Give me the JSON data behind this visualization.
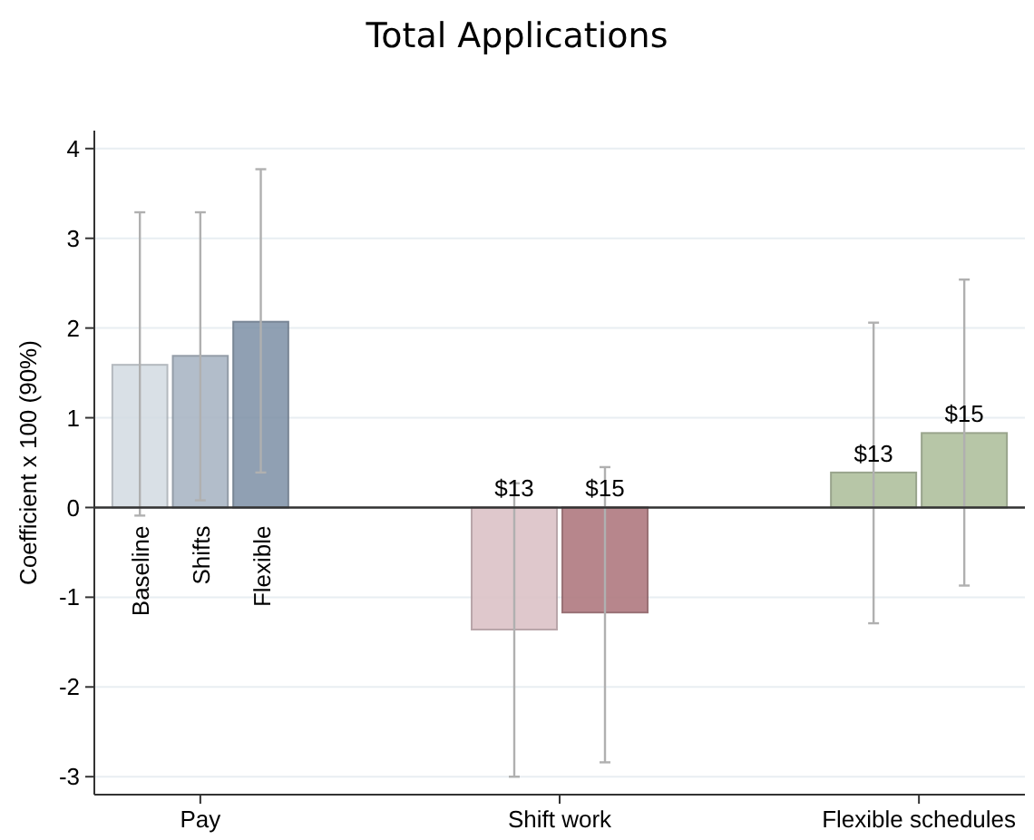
{
  "chart_data": {
    "type": "bar",
    "title": "Total Applications",
    "ylabel": "Coefficient x 100 (90%)",
    "categories": [
      "Pay",
      "Shift work",
      "Flexible schedules"
    ],
    "series": [
      {
        "name": "Baseline",
        "color": "#d5dde4",
        "values": [
          1.59,
          null,
          null
        ],
        "errors": [
          [
            -0.09,
            3.29
          ],
          null,
          null
        ]
      },
      {
        "name": "Shifts",
        "color": "#aab6c5",
        "values": [
          1.69,
          null,
          null
        ],
        "errors": [
          [
            0.08,
            3.29
          ],
          null,
          null
        ]
      },
      {
        "name": "Flexible",
        "color": "#8496ab",
        "values": [
          2.07,
          null,
          null
        ],
        "errors": [
          [
            0.39,
            3.77
          ],
          null,
          null
        ]
      },
      {
        "name": "$13",
        "color": "#dcc3c7",
        "values": [
          null,
          -1.36,
          null
        ],
        "errors": [
          null,
          [
            -3.0,
            0.27
          ],
          null
        ]
      },
      {
        "name": "$15",
        "color": "#b07a80",
        "values": [
          null,
          -1.17,
          null
        ],
        "errors": [
          null,
          [
            -2.84,
            0.45
          ],
          null
        ]
      },
      {
        "name": "$13",
        "color": "#b0c09e",
        "values": [
          null,
          null,
          0.39
        ],
        "errors": [
          null,
          null,
          [
            -1.29,
            2.06
          ]
        ]
      },
      {
        "name": "$15",
        "color": "#b0c09e",
        "values": [
          null,
          null,
          0.83
        ],
        "errors": [
          null,
          null,
          [
            -0.87,
            2.54
          ]
        ]
      }
    ],
    "ylim": [
      -3.2,
      4.2
    ],
    "yticks": [
      -3,
      -2,
      -1,
      0,
      1,
      2,
      3,
      4
    ],
    "grid": "y",
    "ref_lines": [
      {
        "axis": "y",
        "value": 0,
        "color": "#333333"
      }
    ]
  }
}
